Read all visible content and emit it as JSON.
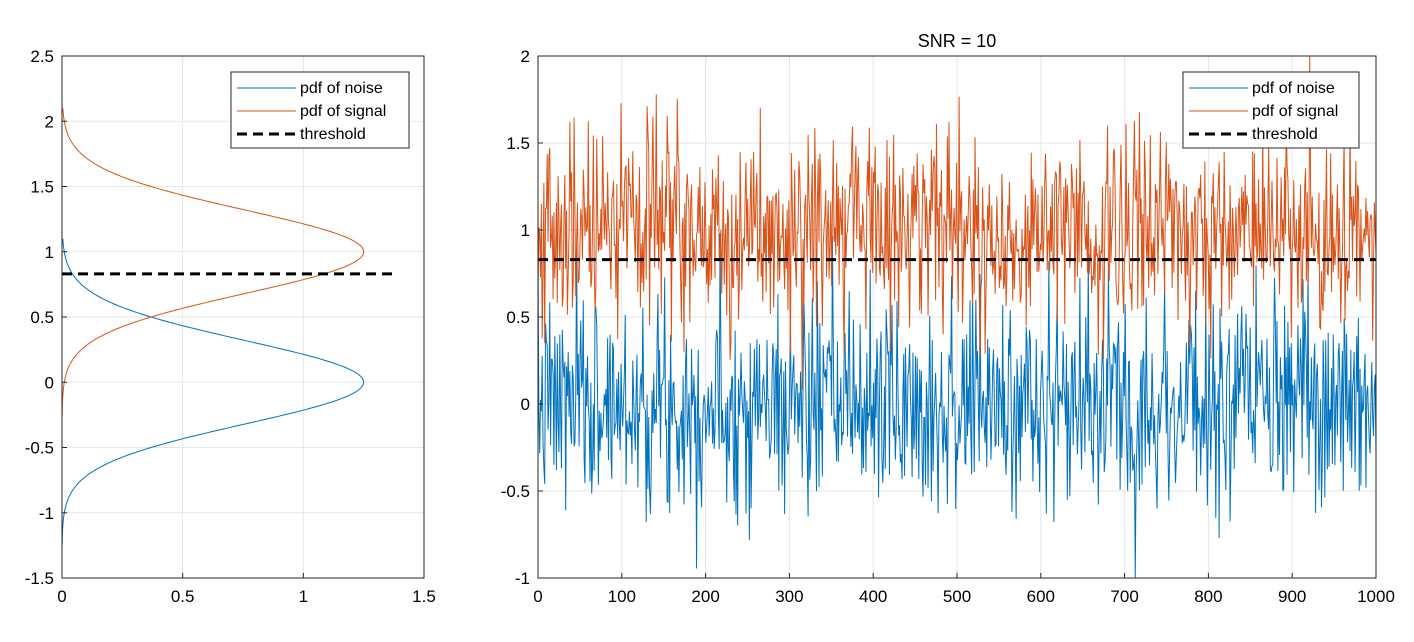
{
  "colors": {
    "noise": "#0072BD",
    "signal": "#D95319",
    "threshold": "#000000",
    "grid": "#e6e6e6",
    "axis": "#262626"
  },
  "chart_data": [
    {
      "type": "line",
      "title": "",
      "xlabel": "",
      "ylabel": "",
      "xlim": [
        0,
        1.5
      ],
      "ylim": [
        -1.5,
        2.5
      ],
      "xticks": [
        0,
        0.5,
        1,
        1.5
      ],
      "xtick_labels": [
        "0",
        "0.5",
        "1",
        "1.5"
      ],
      "yticks": [
        -1.5,
        -1,
        -0.5,
        0,
        0.5,
        1,
        1.5,
        2,
        2.5
      ],
      "ytick_labels": [
        "-1.5",
        "-1",
        "-0.5",
        "0",
        "0.5",
        "1",
        "1.5",
        "2",
        "2.5"
      ],
      "grid": true,
      "legend_position": "top-right",
      "series": [
        {
          "name": "pdf of noise",
          "kind": "gaussian-pdf-horizontal",
          "mean": 0,
          "sigma": 0.32,
          "y_range": [
            -1.25,
            1.1
          ],
          "color": "#0072BD"
        },
        {
          "name": "pdf of signal",
          "kind": "gaussian-pdf-horizontal",
          "mean": 1,
          "sigma": 0.32,
          "y_range": [
            -0.25,
            2.1
          ],
          "color": "#D95319"
        },
        {
          "name": "threshold",
          "kind": "hline",
          "y": 0.83,
          "x_range": [
            0,
            1.37
          ],
          "color": "#000000",
          "dashed": true
        }
      ]
    },
    {
      "type": "line",
      "title": "SNR = 10",
      "xlabel": "",
      "ylabel": "",
      "xlim": [
        0,
        1000
      ],
      "ylim": [
        -1,
        2
      ],
      "xticks": [
        0,
        100,
        200,
        300,
        400,
        500,
        600,
        700,
        800,
        900,
        1000
      ],
      "xtick_labels": [
        "0",
        "100",
        "200",
        "300",
        "400",
        "500",
        "600",
        "700",
        "800",
        "900",
        "1000"
      ],
      "yticks": [
        -1,
        -0.5,
        0,
        0.5,
        1,
        1.5,
        2
      ],
      "ytick_labels": [
        "-1",
        "-0.5",
        "0",
        "0.5",
        "1",
        "1.5",
        "2"
      ],
      "grid": true,
      "legend_position": "top-right",
      "series": [
        {
          "name": "pdf of noise",
          "kind": "random-samples",
          "n": 1000,
          "mean": 0,
          "sigma": 0.3,
          "seed": 7,
          "color": "#0072BD"
        },
        {
          "name": "pdf of signal",
          "kind": "random-samples",
          "n": 1000,
          "mean": 1,
          "sigma": 0.3,
          "seed": 19,
          "color": "#D95319"
        },
        {
          "name": "threshold",
          "kind": "hline",
          "y": 0.83,
          "x_range": [
            0,
            1000
          ],
          "color": "#000000",
          "dashed": true
        }
      ]
    }
  ]
}
